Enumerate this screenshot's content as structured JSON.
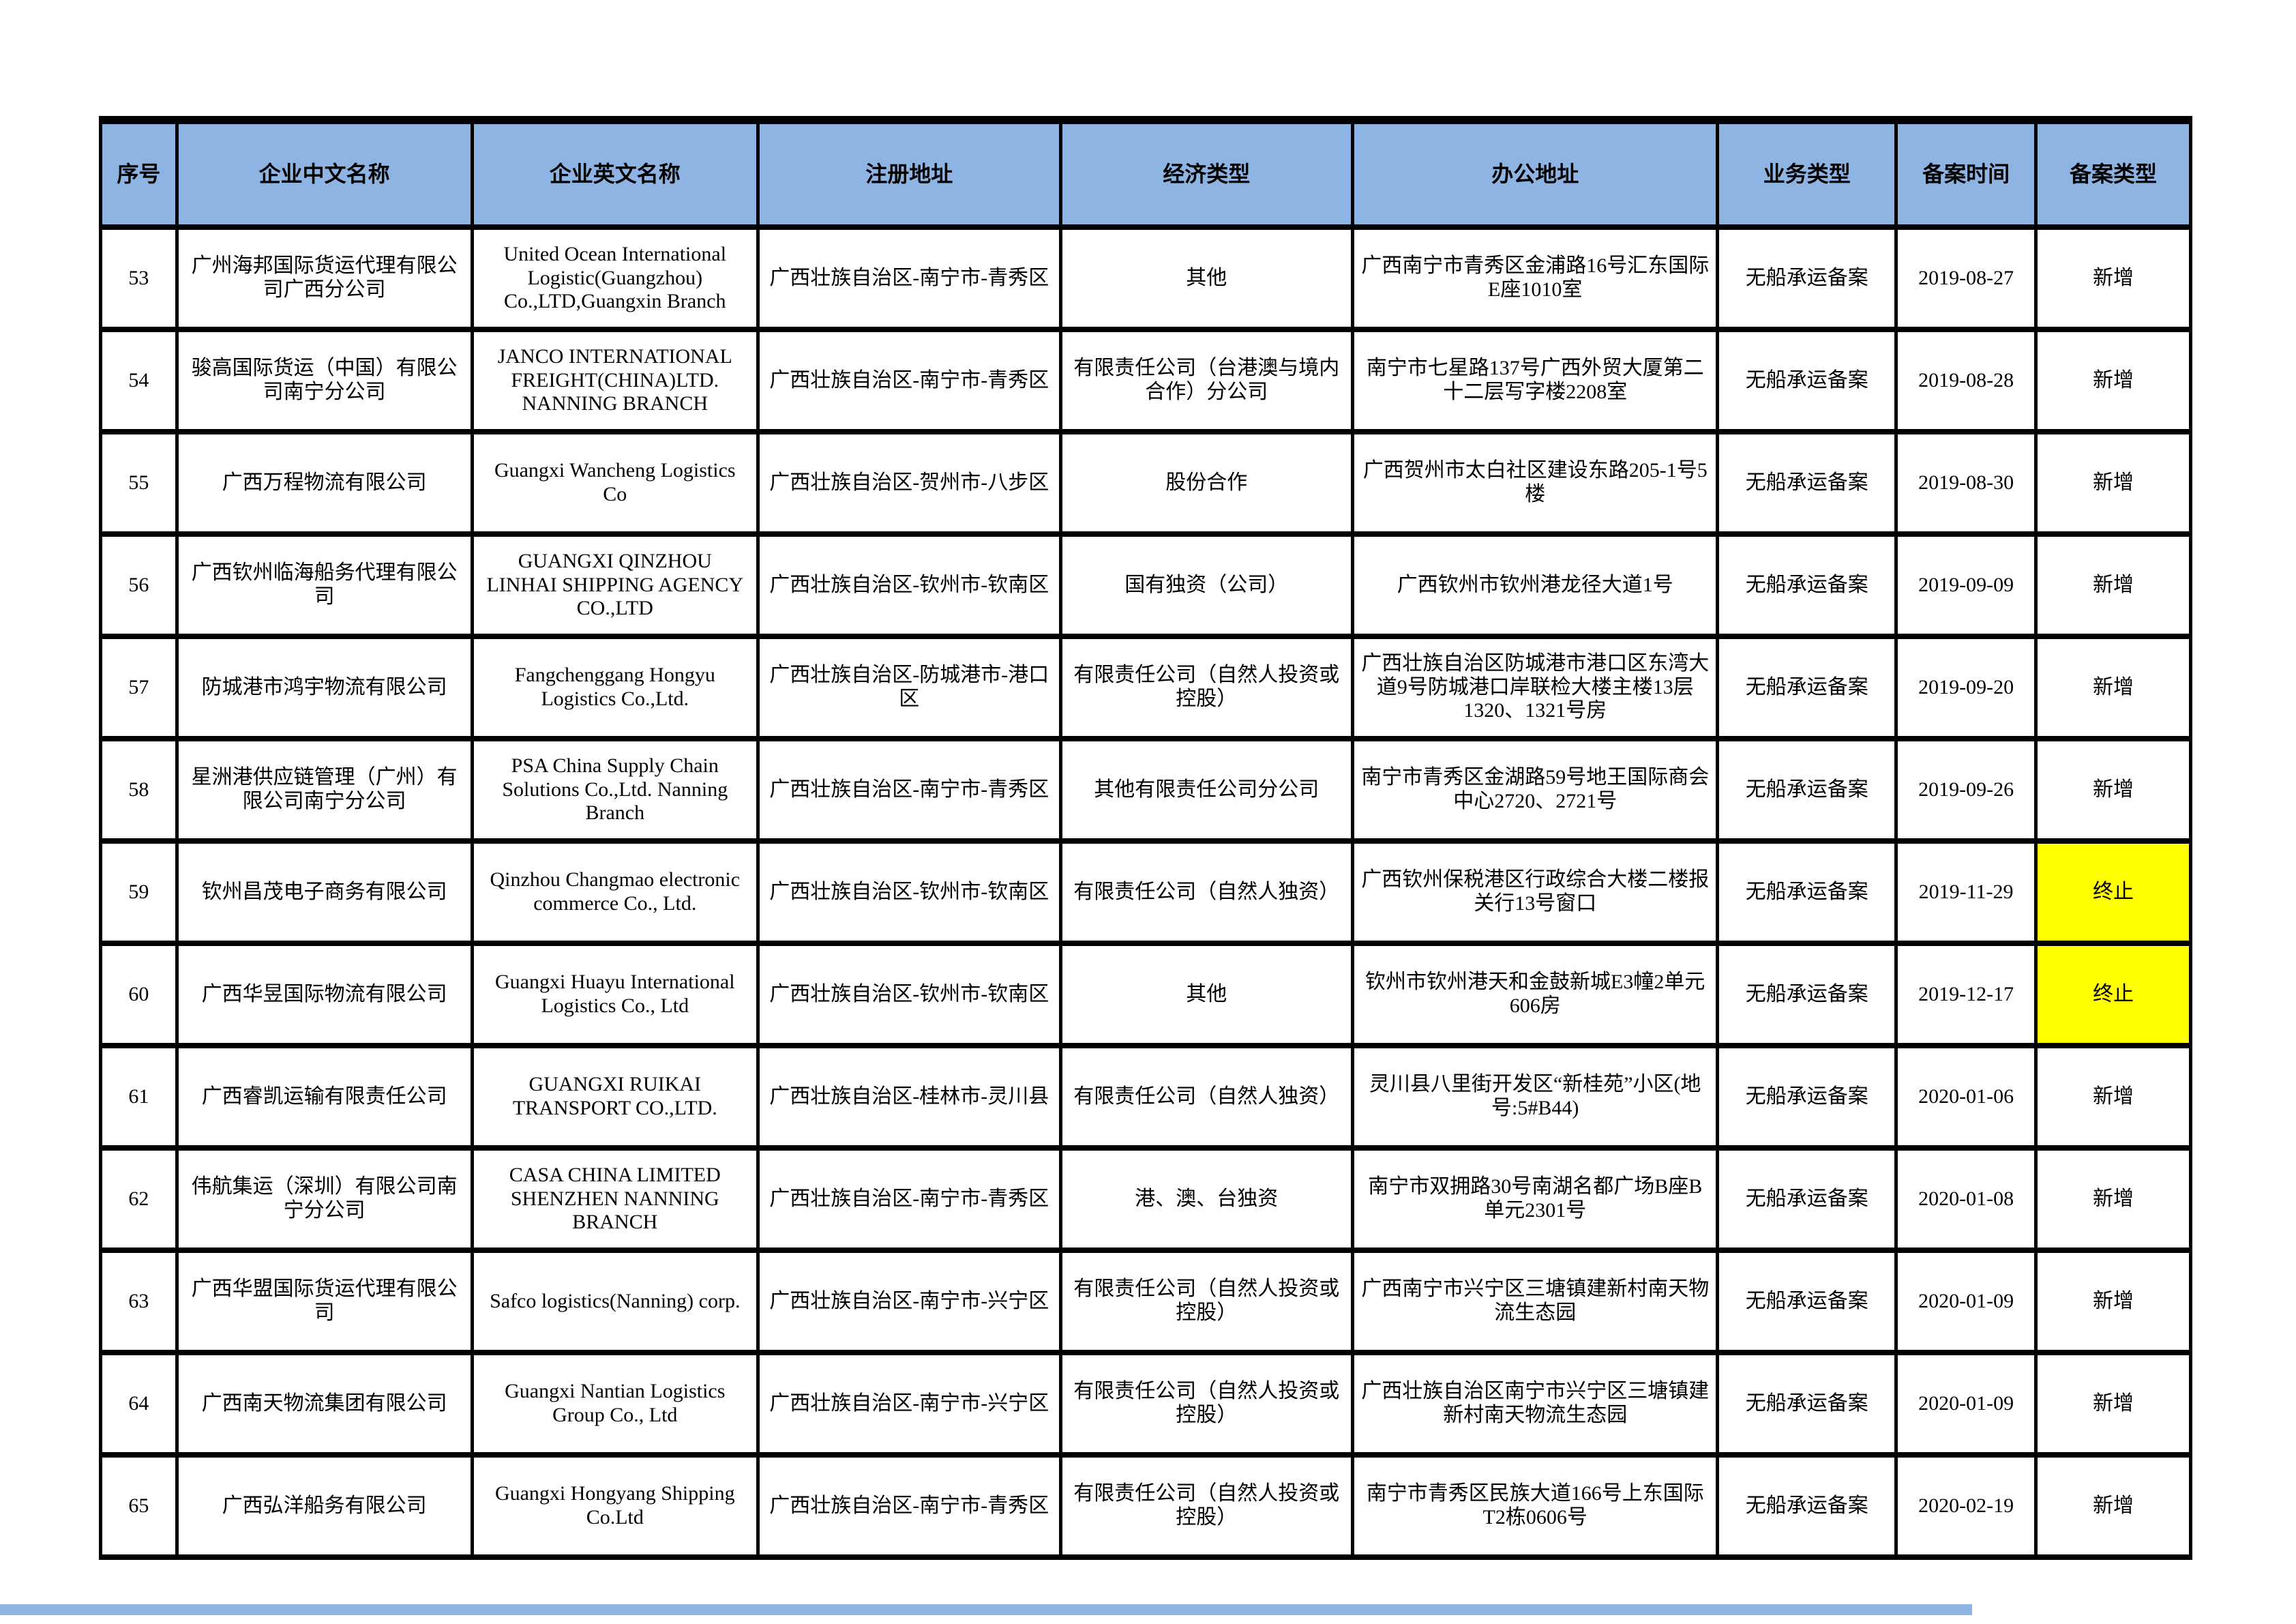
{
  "table": {
    "colors": {
      "header_bg": "#8DB4E2",
      "highlight": "#FFFF00",
      "border": "#000000",
      "footer_bar": "#8DB4E2"
    },
    "columns": [
      {
        "key": "no",
        "label": "序号"
      },
      {
        "key": "cn_name",
        "label": "企业中文名称"
      },
      {
        "key": "en_name",
        "label": "企业英文名称"
      },
      {
        "key": "reg_addr",
        "label": "注册地址"
      },
      {
        "key": "econ_type",
        "label": "经济类型"
      },
      {
        "key": "office_addr",
        "label": "办公地址"
      },
      {
        "key": "biz_type",
        "label": "业务类型"
      },
      {
        "key": "record_date",
        "label": "备案时间"
      },
      {
        "key": "record_type",
        "label": "备案类型"
      }
    ],
    "rows": [
      {
        "no": "53",
        "cn_name": "广州海邦国际货运代理有限公司广西分公司",
        "en_name": "United Ocean International Logistic(Guangzhou) Co.,LTD,Guangxin Branch",
        "reg_addr": "广西壮族自治区-南宁市-青秀区",
        "econ_type": "其他",
        "office_addr": "广西南宁市青秀区金浦路16号汇东国际E座1010室",
        "biz_type": "无船承运备案",
        "record_date": "2019-08-27",
        "record_type": "新增",
        "terminated": false
      },
      {
        "no": "54",
        "cn_name": "骏高国际货运（中国）有限公司南宁分公司",
        "en_name": "JANCO INTERNATIONAL FREIGHT(CHINA)LTD. NANNING BRANCH",
        "reg_addr": "广西壮族自治区-南宁市-青秀区",
        "econ_type": "有限责任公司（台港澳与境内合作）分公司",
        "office_addr": "南宁市七星路137号广西外贸大厦第二十二层写字楼2208室",
        "biz_type": "无船承运备案",
        "record_date": "2019-08-28",
        "record_type": "新增",
        "terminated": false
      },
      {
        "no": "55",
        "cn_name": "广西万程物流有限公司",
        "en_name": "Guangxi Wancheng Logistics Co",
        "reg_addr": "广西壮族自治区-贺州市-八步区",
        "econ_type": "股份合作",
        "office_addr": "广西贺州市太白社区建设东路205-1号5楼",
        "biz_type": "无船承运备案",
        "record_date": "2019-08-30",
        "record_type": "新增",
        "terminated": false
      },
      {
        "no": "56",
        "cn_name": "广西钦州临海船务代理有限公司",
        "en_name": "GUANGXI QINZHOU LINHAI SHIPPING AGENCY CO.,LTD",
        "reg_addr": "广西壮族自治区-钦州市-钦南区",
        "econ_type": "国有独资（公司）",
        "office_addr": "广西钦州市钦州港龙径大道1号",
        "biz_type": "无船承运备案",
        "record_date": "2019-09-09",
        "record_type": "新增",
        "terminated": false
      },
      {
        "no": "57",
        "cn_name": "防城港市鸿宇物流有限公司",
        "en_name": "Fangchenggang Hongyu Logistics Co.,Ltd.",
        "reg_addr": "广西壮族自治区-防城港市-港口区",
        "econ_type": "有限责任公司（自然人投资或控股）",
        "office_addr": "广西壮族自治区防城港市港口区东湾大道9号防城港口岸联检大楼主楼13层1320、1321号房",
        "biz_type": "无船承运备案",
        "record_date": "2019-09-20",
        "record_type": "新增",
        "terminated": false
      },
      {
        "no": "58",
        "cn_name": "星洲港供应链管理（广州）有限公司南宁分公司",
        "en_name": "PSA China Supply Chain Solutions Co.,Ltd. Nanning Branch",
        "reg_addr": "广西壮族自治区-南宁市-青秀区",
        "econ_type": "其他有限责任公司分公司",
        "office_addr": "南宁市青秀区金湖路59号地王国际商会中心2720、2721号",
        "biz_type": "无船承运备案",
        "record_date": "2019-09-26",
        "record_type": "新增",
        "terminated": false
      },
      {
        "no": "59",
        "cn_name": "钦州昌茂电子商务有限公司",
        "en_name": "Qinzhou Changmao electronic commerce Co., Ltd.",
        "reg_addr": "广西壮族自治区-钦州市-钦南区",
        "econ_type": "有限责任公司（自然人独资）",
        "office_addr": "广西钦州保税港区行政综合大楼二楼报关行13号窗口",
        "biz_type": "无船承运备案",
        "record_date": "2019-11-29",
        "record_type": "终止",
        "terminated": true
      },
      {
        "no": "60",
        "cn_name": "广西华昱国际物流有限公司",
        "en_name": "Guangxi Huayu International Logistics Co., Ltd",
        "reg_addr": "广西壮族自治区-钦州市-钦南区",
        "econ_type": "其他",
        "office_addr": "钦州市钦州港天和金鼓新城E3幢2单元606房",
        "biz_type": "无船承运备案",
        "record_date": "2019-12-17",
        "record_type": "终止",
        "terminated": true
      },
      {
        "no": "61",
        "cn_name": "广西睿凯运输有限责任公司",
        "en_name": "GUANGXI RUIKAI TRANSPORT CO.,LTD.",
        "reg_addr": "广西壮族自治区-桂林市-灵川县",
        "econ_type": "有限责任公司（自然人独资）",
        "office_addr": "灵川县八里街开发区“新桂苑”小区(地号:5#B44)",
        "biz_type": "无船承运备案",
        "record_date": "2020-01-06",
        "record_type": "新增",
        "terminated": false
      },
      {
        "no": "62",
        "cn_name": "伟航集运（深圳）有限公司南宁分公司",
        "en_name": "CASA CHINA LIMITED SHENZHEN NANNING BRANCH",
        "reg_addr": "广西壮族自治区-南宁市-青秀区",
        "econ_type": "港、澳、台独资",
        "office_addr": "南宁市双拥路30号南湖名都广场B座B单元2301号",
        "biz_type": "无船承运备案",
        "record_date": "2020-01-08",
        "record_type": "新增",
        "terminated": false
      },
      {
        "no": "63",
        "cn_name": "广西华盟国际货运代理有限公司",
        "en_name": "Safco logistics(Nanning) corp.",
        "reg_addr": "广西壮族自治区-南宁市-兴宁区",
        "econ_type": "有限责任公司（自然人投资或控股）",
        "office_addr": "广西南宁市兴宁区三塘镇建新村南天物流生态园",
        "biz_type": "无船承运备案",
        "record_date": "2020-01-09",
        "record_type": "新增",
        "terminated": false
      },
      {
        "no": "64",
        "cn_name": "广西南天物流集团有限公司",
        "en_name": "Guangxi Nantian Logistics Group Co., Ltd",
        "reg_addr": "广西壮族自治区-南宁市-兴宁区",
        "econ_type": "有限责任公司（自然人投资或控股）",
        "office_addr": "广西壮族自治区南宁市兴宁区三塘镇建新村南天物流生态园",
        "biz_type": "无船承运备案",
        "record_date": "2020-01-09",
        "record_type": "新增",
        "terminated": false
      },
      {
        "no": "65",
        "cn_name": "广西弘洋船务有限公司",
        "en_name": "Guangxi Hongyang Shipping Co.Ltd",
        "reg_addr": "广西壮族自治区-南宁市-青秀区",
        "econ_type": "有限责任公司（自然人投资或控股）",
        "office_addr": "南宁市青秀区民族大道166号上东国际T2栋0606号",
        "biz_type": "无船承运备案",
        "record_date": "2020-02-19",
        "record_type": "新增",
        "terminated": false
      }
    ]
  }
}
